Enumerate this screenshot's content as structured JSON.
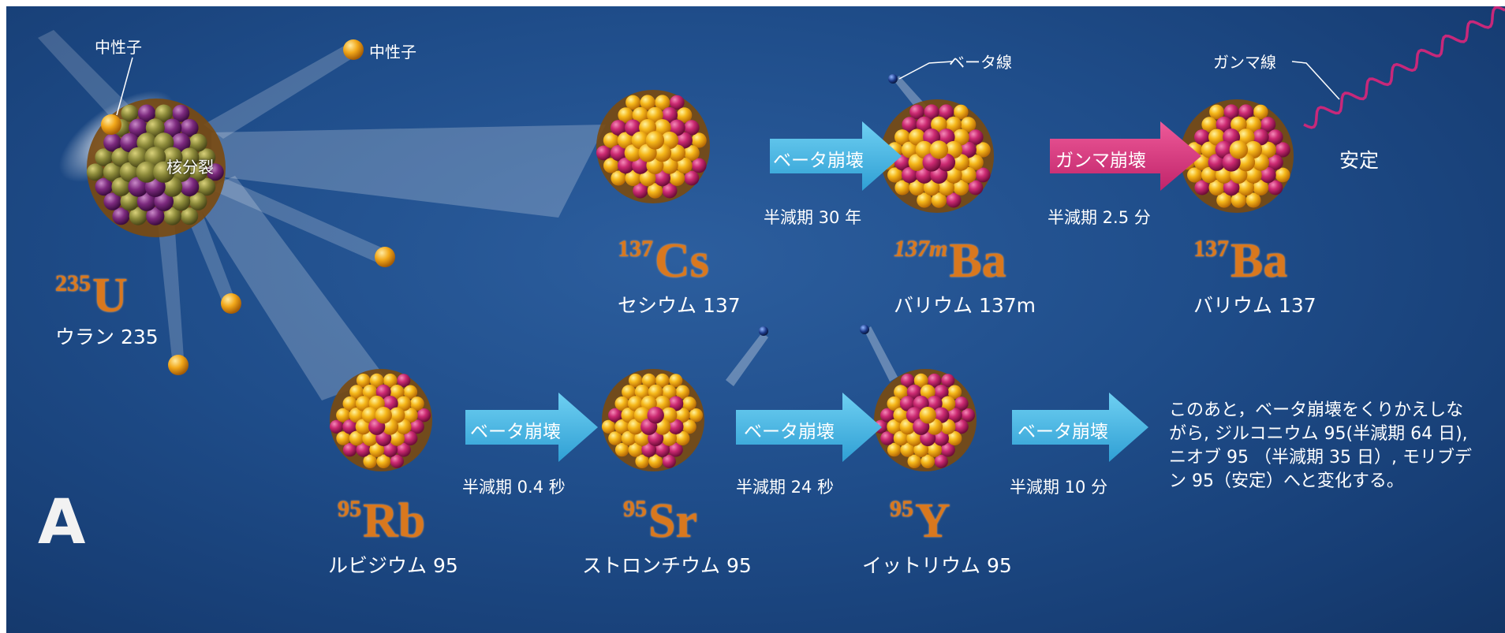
{
  "labels": {
    "neutron_left": "中性子",
    "neutron_top": "中性子",
    "fission": "核分裂",
    "beta_ray": "ベータ線",
    "gamma_ray": "ガンマ線",
    "stable": "安定"
  },
  "nuclides": {
    "u235": {
      "mass": "235",
      "element": "U",
      "name": "ウラン 235"
    },
    "cs137": {
      "mass": "137",
      "element": "Cs",
      "name": "セシウム 137"
    },
    "ba137m": {
      "mass": "137m",
      "element": "Ba",
      "name": "バリウム 137m"
    },
    "ba137": {
      "mass": "137",
      "element": "Ba",
      "name": "バリウム 137"
    },
    "rb95": {
      "mass": "95",
      "element": "Rb",
      "name": "ルビジウム 95"
    },
    "sr95": {
      "mass": "95",
      "element": "Sr",
      "name": "ストロンチウム 95"
    },
    "y95": {
      "mass": "95",
      "element": "Y",
      "name": "イットリウム 95"
    }
  },
  "decays": {
    "cs_to_ba137m": {
      "label": "ベータ崩壊",
      "half_life": "半減期 30 年"
    },
    "ba137m_to_ba137": {
      "label": "ガンマ崩壊",
      "half_life": "半減期 2.5 分"
    },
    "rb_to_sr": {
      "label": "ベータ崩壊",
      "half_life": "半減期 0.4 秒"
    },
    "sr_to_y": {
      "label": "ベータ崩壊",
      "half_life": "半減期 24 秒"
    },
    "y_onward": {
      "label": "ベータ崩壊",
      "half_life": "半減期 10 分"
    }
  },
  "note": {
    "line1": "このあと，ベータ崩壊をくりかえしな",
    "line2": "がら, ジルコニウム 95(半減期 64 日),",
    "line3": "ニオブ 95 （半減期 35 日）, モリブデ",
    "line4": "ン 95（安定）へと変化する。"
  },
  "panel_label": "A",
  "colors": {
    "background": "#1f4d8a",
    "beta_arrow": "#45b6e3",
    "gamma_arrow": "#d6337a",
    "symbol": "#d9781e",
    "proton": "#c2246e",
    "neutron_ball": "#f2b01e"
  }
}
